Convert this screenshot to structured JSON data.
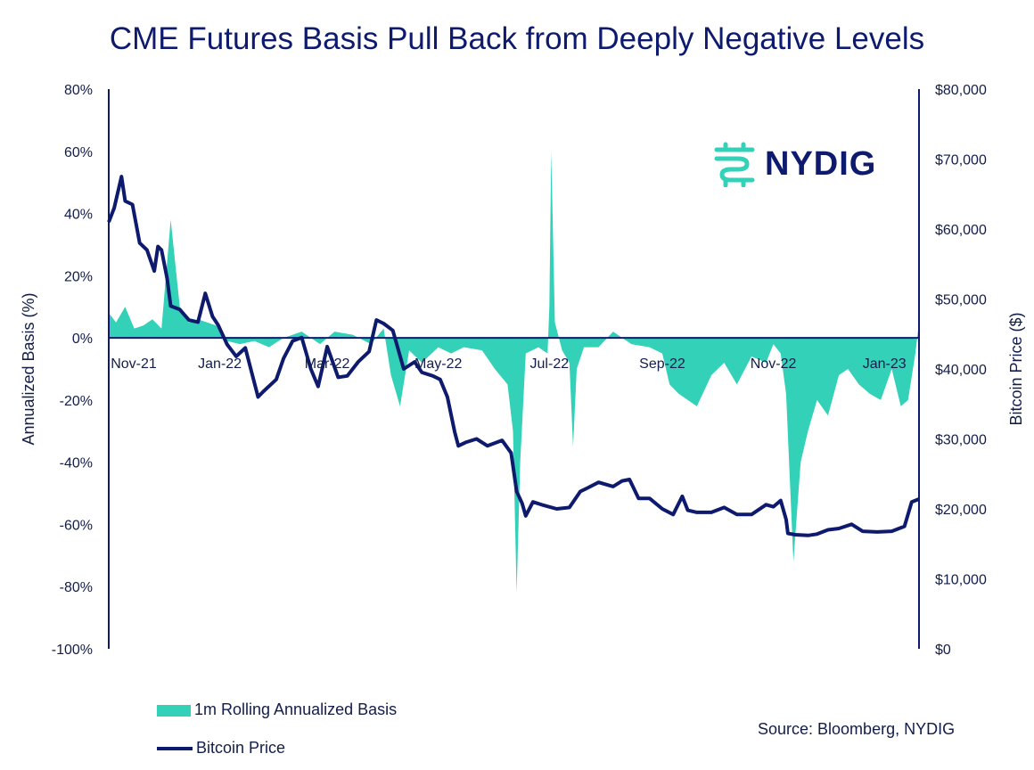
{
  "title": "CME Futures Basis Pull Back from Deeply Negative Levels",
  "source": "Source: Bloomberg, NYDIG",
  "logo_text": "NYDIG",
  "colors": {
    "basis": "#33d1b8",
    "price": "#0d1a6e",
    "axis": "#0d1a6e",
    "text": "#121d4a"
  },
  "chart_data": {
    "type": "area",
    "title": "CME Futures Basis Pull Back from Deeply Negative Levels",
    "xlabel": "",
    "ylabel": "Annualized Basis (%)",
    "y2label": "Bitcoin Price ($)",
    "ylim": [
      -100,
      80
    ],
    "y2lim": [
      0,
      80000
    ],
    "xlim": [
      "2021-11-01",
      "2023-01-20"
    ],
    "x_ticks": [
      "Nov-21",
      "Jan-22",
      "Mar-22",
      "May-22",
      "Jul-22",
      "Sep-22",
      "Nov-22",
      "Jan-23"
    ],
    "x_tick_dates": [
      "2021-11-01",
      "2022-01-01",
      "2022-03-01",
      "2022-05-01",
      "2022-07-01",
      "2022-09-01",
      "2022-11-01",
      "2023-01-01"
    ],
    "y_ticks": [
      "80%",
      "60%",
      "40%",
      "20%",
      "0%",
      "-20%",
      "-40%",
      "-60%",
      "-80%",
      "-100%"
    ],
    "y_tick_values": [
      80,
      60,
      40,
      20,
      0,
      -20,
      -40,
      -60,
      -80,
      -100
    ],
    "y2_ticks": [
      "$80,000",
      "$70,000",
      "$60,000",
      "$50,000",
      "$40,000",
      "$30,000",
      "$20,000",
      "$10,000",
      "$0"
    ],
    "y2_tick_values": [
      80000,
      70000,
      60000,
      50000,
      40000,
      30000,
      20000,
      10000,
      0
    ],
    "legend": "bottom-left",
    "grid": false,
    "series": [
      {
        "name": "1m Rolling Annualized Basis",
        "type": "area",
        "axis": "left",
        "x": [
          "2021-11-01",
          "2021-11-05",
          "2021-11-10",
          "2021-11-15",
          "2021-11-20",
          "2021-11-25",
          "2021-11-30",
          "2021-12-05",
          "2021-12-10",
          "2021-12-15",
          "2021-12-20",
          "2021-12-25",
          "2021-12-30",
          "2022-01-05",
          "2022-01-12",
          "2022-01-20",
          "2022-01-28",
          "2022-02-05",
          "2022-02-15",
          "2022-02-25",
          "2022-03-05",
          "2022-03-15",
          "2022-03-25",
          "2022-04-01",
          "2022-04-05",
          "2022-04-10",
          "2022-04-15",
          "2022-04-22",
          "2022-05-01",
          "2022-05-08",
          "2022-05-15",
          "2022-05-25",
          "2022-06-01",
          "2022-06-08",
          "2022-06-11",
          "2022-06-13",
          "2022-06-15",
          "2022-06-18",
          "2022-06-25",
          "2022-06-30",
          "2022-07-01",
          "2022-07-02",
          "2022-07-04",
          "2022-07-08",
          "2022-07-12",
          "2022-07-14",
          "2022-07-16",
          "2022-07-20",
          "2022-07-28",
          "2022-08-05",
          "2022-08-15",
          "2022-08-25",
          "2022-09-01",
          "2022-09-05",
          "2022-09-10",
          "2022-09-15",
          "2022-09-20",
          "2022-09-28",
          "2022-10-05",
          "2022-10-12",
          "2022-10-20",
          "2022-10-28",
          "2022-11-01",
          "2022-11-05",
          "2022-11-08",
          "2022-11-10",
          "2022-11-12",
          "2022-11-16",
          "2022-11-20",
          "2022-11-25",
          "2022-12-01",
          "2022-12-07",
          "2022-12-12",
          "2022-12-18",
          "2022-12-24",
          "2022-12-30",
          "2023-01-05",
          "2023-01-10",
          "2023-01-14",
          "2023-01-18",
          "2023-01-20"
        ],
        "values": [
          8,
          5,
          10,
          3,
          4,
          6,
          3,
          38,
          10,
          5,
          6,
          5,
          4,
          -1,
          -2,
          -1,
          -3,
          0,
          2,
          -2,
          2,
          1,
          -2,
          3,
          -12,
          -22,
          -4,
          -8,
          -3,
          -5,
          -3,
          -4,
          -10,
          -15,
          -30,
          -82,
          -40,
          -5,
          -3,
          -5,
          10,
          60,
          5,
          -4,
          -8,
          -35,
          -10,
          -3,
          -3,
          2,
          -2,
          -3,
          -5,
          -15,
          -18,
          -20,
          -22,
          -12,
          -8,
          -15,
          -6,
          -8,
          -2,
          -5,
          -18,
          -45,
          -72,
          -40,
          -30,
          -20,
          -25,
          -12,
          -10,
          -15,
          -18,
          -20,
          -10,
          -22,
          -20,
          -5,
          5
        ]
      },
      {
        "name": "Bitcoin Price",
        "type": "line",
        "axis": "right",
        "x": [
          "2021-11-01",
          "2021-11-04",
          "2021-11-08",
          "2021-11-10",
          "2021-11-14",
          "2021-11-18",
          "2021-11-22",
          "2021-11-26",
          "2021-11-28",
          "2021-11-30",
          "2021-12-03",
          "2021-12-05",
          "2021-12-10",
          "2021-12-15",
          "2021-12-20",
          "2021-12-24",
          "2021-12-28",
          "2021-12-31",
          "2022-01-05",
          "2022-01-10",
          "2022-01-15",
          "2022-01-22",
          "2022-01-25",
          "2022-02-01",
          "2022-02-05",
          "2022-02-10",
          "2022-02-15",
          "2022-02-20",
          "2022-02-24",
          "2022-03-01",
          "2022-03-07",
          "2022-03-12",
          "2022-03-18",
          "2022-03-24",
          "2022-03-28",
          "2022-04-01",
          "2022-04-06",
          "2022-04-12",
          "2022-04-18",
          "2022-04-22",
          "2022-04-28",
          "2022-05-02",
          "2022-05-06",
          "2022-05-10",
          "2022-05-12",
          "2022-05-16",
          "2022-05-22",
          "2022-05-28",
          "2022-06-05",
          "2022-06-10",
          "2022-06-13",
          "2022-06-16",
          "2022-06-18",
          "2022-06-22",
          "2022-06-28",
          "2022-07-05",
          "2022-07-12",
          "2022-07-18",
          "2022-07-22",
          "2022-07-28",
          "2022-08-05",
          "2022-08-10",
          "2022-08-14",
          "2022-08-19",
          "2022-08-25",
          "2022-09-01",
          "2022-09-07",
          "2022-09-12",
          "2022-09-15",
          "2022-09-20",
          "2022-09-28",
          "2022-10-05",
          "2022-10-12",
          "2022-10-20",
          "2022-10-28",
          "2022-11-01",
          "2022-11-05",
          "2022-11-08",
          "2022-11-09",
          "2022-11-13",
          "2022-11-20",
          "2022-11-25",
          "2022-12-01",
          "2022-12-07",
          "2022-12-14",
          "2022-12-20",
          "2022-12-28",
          "2023-01-05",
          "2023-01-12",
          "2023-01-16",
          "2023-01-20"
        ],
        "values": [
          61000,
          63000,
          67500,
          64000,
          63500,
          58000,
          57000,
          54000,
          57500,
          57000,
          53000,
          49000,
          48500,
          47000,
          46700,
          50800,
          47500,
          46300,
          43500,
          41800,
          43000,
          36000,
          36800,
          38500,
          41500,
          44000,
          44500,
          40000,
          37500,
          43200,
          38800,
          39000,
          41000,
          42500,
          47000,
          46500,
          45500,
          40000,
          41000,
          39500,
          39000,
          38500,
          36000,
          31000,
          29000,
          29500,
          30000,
          29000,
          29800,
          28000,
          22500,
          20800,
          19000,
          21000,
          20500,
          20000,
          20200,
          22500,
          23000,
          23800,
          23200,
          24000,
          24200,
          21500,
          21500,
          20000,
          19200,
          21800,
          19800,
          19500,
          19500,
          20200,
          19200,
          19200,
          20600,
          20300,
          21200,
          18500,
          16500,
          16300,
          16200,
          16400,
          17000,
          17200,
          17800,
          16800,
          16700,
          16800,
          17500,
          21000,
          21400
        ]
      }
    ]
  }
}
